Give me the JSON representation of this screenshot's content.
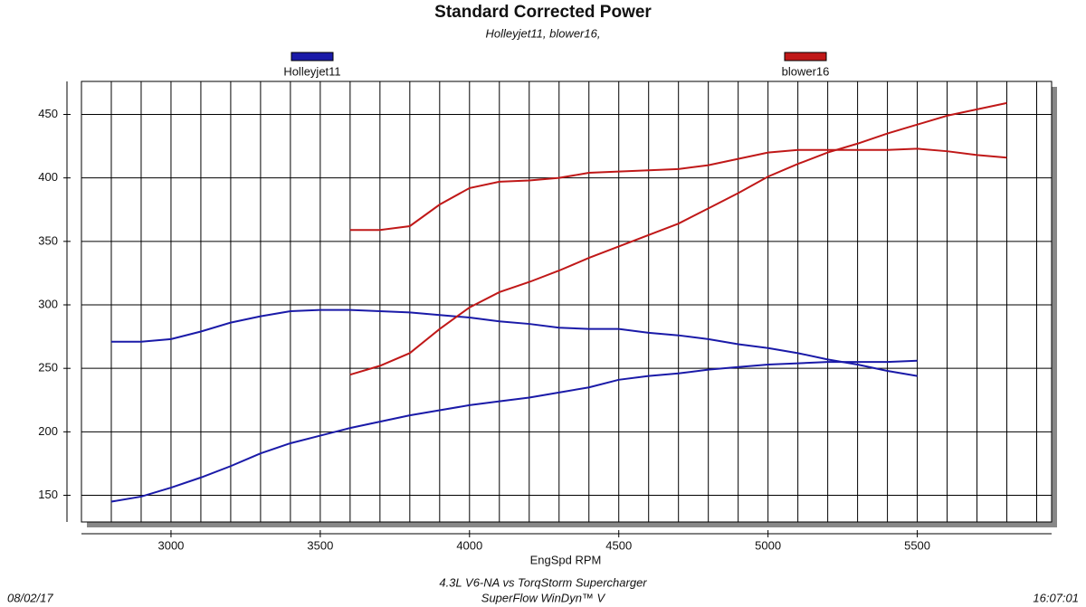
{
  "chart_data": {
    "type": "line",
    "title": "Standard Corrected Power",
    "subtitle": "Holleyjet11, blower16,",
    "x_label": "EngSpd RPM",
    "footer": [
      "4.3L V6-NA vs TorqStorm Supercharger",
      "SuperFlow WinDyn™ V"
    ],
    "date": "08/02/17",
    "time": "16:07:01",
    "xlim": [
      2700,
      5950
    ],
    "ylim": [
      129,
      476
    ],
    "xticks": [
      3000,
      3500,
      4000,
      4500,
      5000,
      5500
    ],
    "yticks": [
      150,
      200,
      250,
      300,
      350,
      400,
      450
    ],
    "xgrid": [
      2800,
      2900,
      3000,
      3100,
      3200,
      3300,
      3400,
      3500,
      3600,
      3700,
      3800,
      3900,
      4000,
      4100,
      4200,
      4300,
      4400,
      4500,
      4600,
      4700,
      4800,
      4900,
      5000,
      5100,
      5200,
      5300,
      5400,
      5500,
      5600,
      5700,
      5800,
      5900
    ],
    "grid": true,
    "series": [
      {
        "name": "Holleyjet11",
        "color": "#1a1aa8",
        "x": [
          2800,
          2900,
          3000,
          3100,
          3200,
          3300,
          3400,
          3500,
          3600,
          3700,
          3800,
          3900,
          4000,
          4100,
          4200,
          4300,
          4400,
          4500,
          4600,
          4700,
          4800,
          4900,
          5000,
          5100,
          5200,
          5300,
          5400,
          5500
        ],
        "curves": [
          [
            271,
            271,
            273,
            279,
            286,
            291,
            295,
            296,
            296,
            295,
            294,
            292,
            290,
            287,
            285,
            282,
            281,
            281,
            278,
            276,
            273,
            269,
            266,
            262,
            257,
            253,
            248,
            244
          ],
          [
            145,
            149,
            156,
            164,
            173,
            183,
            191,
            197,
            203,
            208,
            213,
            217,
            221,
            224,
            227,
            231,
            235,
            241,
            244,
            246,
            249,
            251,
            253,
            254,
            255,
            255,
            255,
            256
          ]
        ]
      },
      {
        "name": "blower16",
        "color": "#c01818",
        "x": [
          3600,
          3700,
          3800,
          3900,
          4000,
          4100,
          4200,
          4300,
          4400,
          4500,
          4600,
          4700,
          4800,
          4900,
          5000,
          5100,
          5200,
          5300,
          5400,
          5500,
          5600,
          5700,
          5800
        ],
        "curves": [
          [
            359,
            359,
            362,
            379,
            392,
            397,
            398,
            400,
            404,
            405,
            406,
            407,
            410,
            415,
            420,
            422,
            422,
            422,
            422,
            423,
            421,
            418,
            416
          ],
          [
            245,
            252,
            262,
            281,
            298,
            310,
            318,
            327,
            337,
            346,
            355,
            364,
            376,
            388,
            401,
            411,
            420,
            427,
            435,
            442,
            449,
            454,
            459
          ]
        ]
      }
    ]
  }
}
